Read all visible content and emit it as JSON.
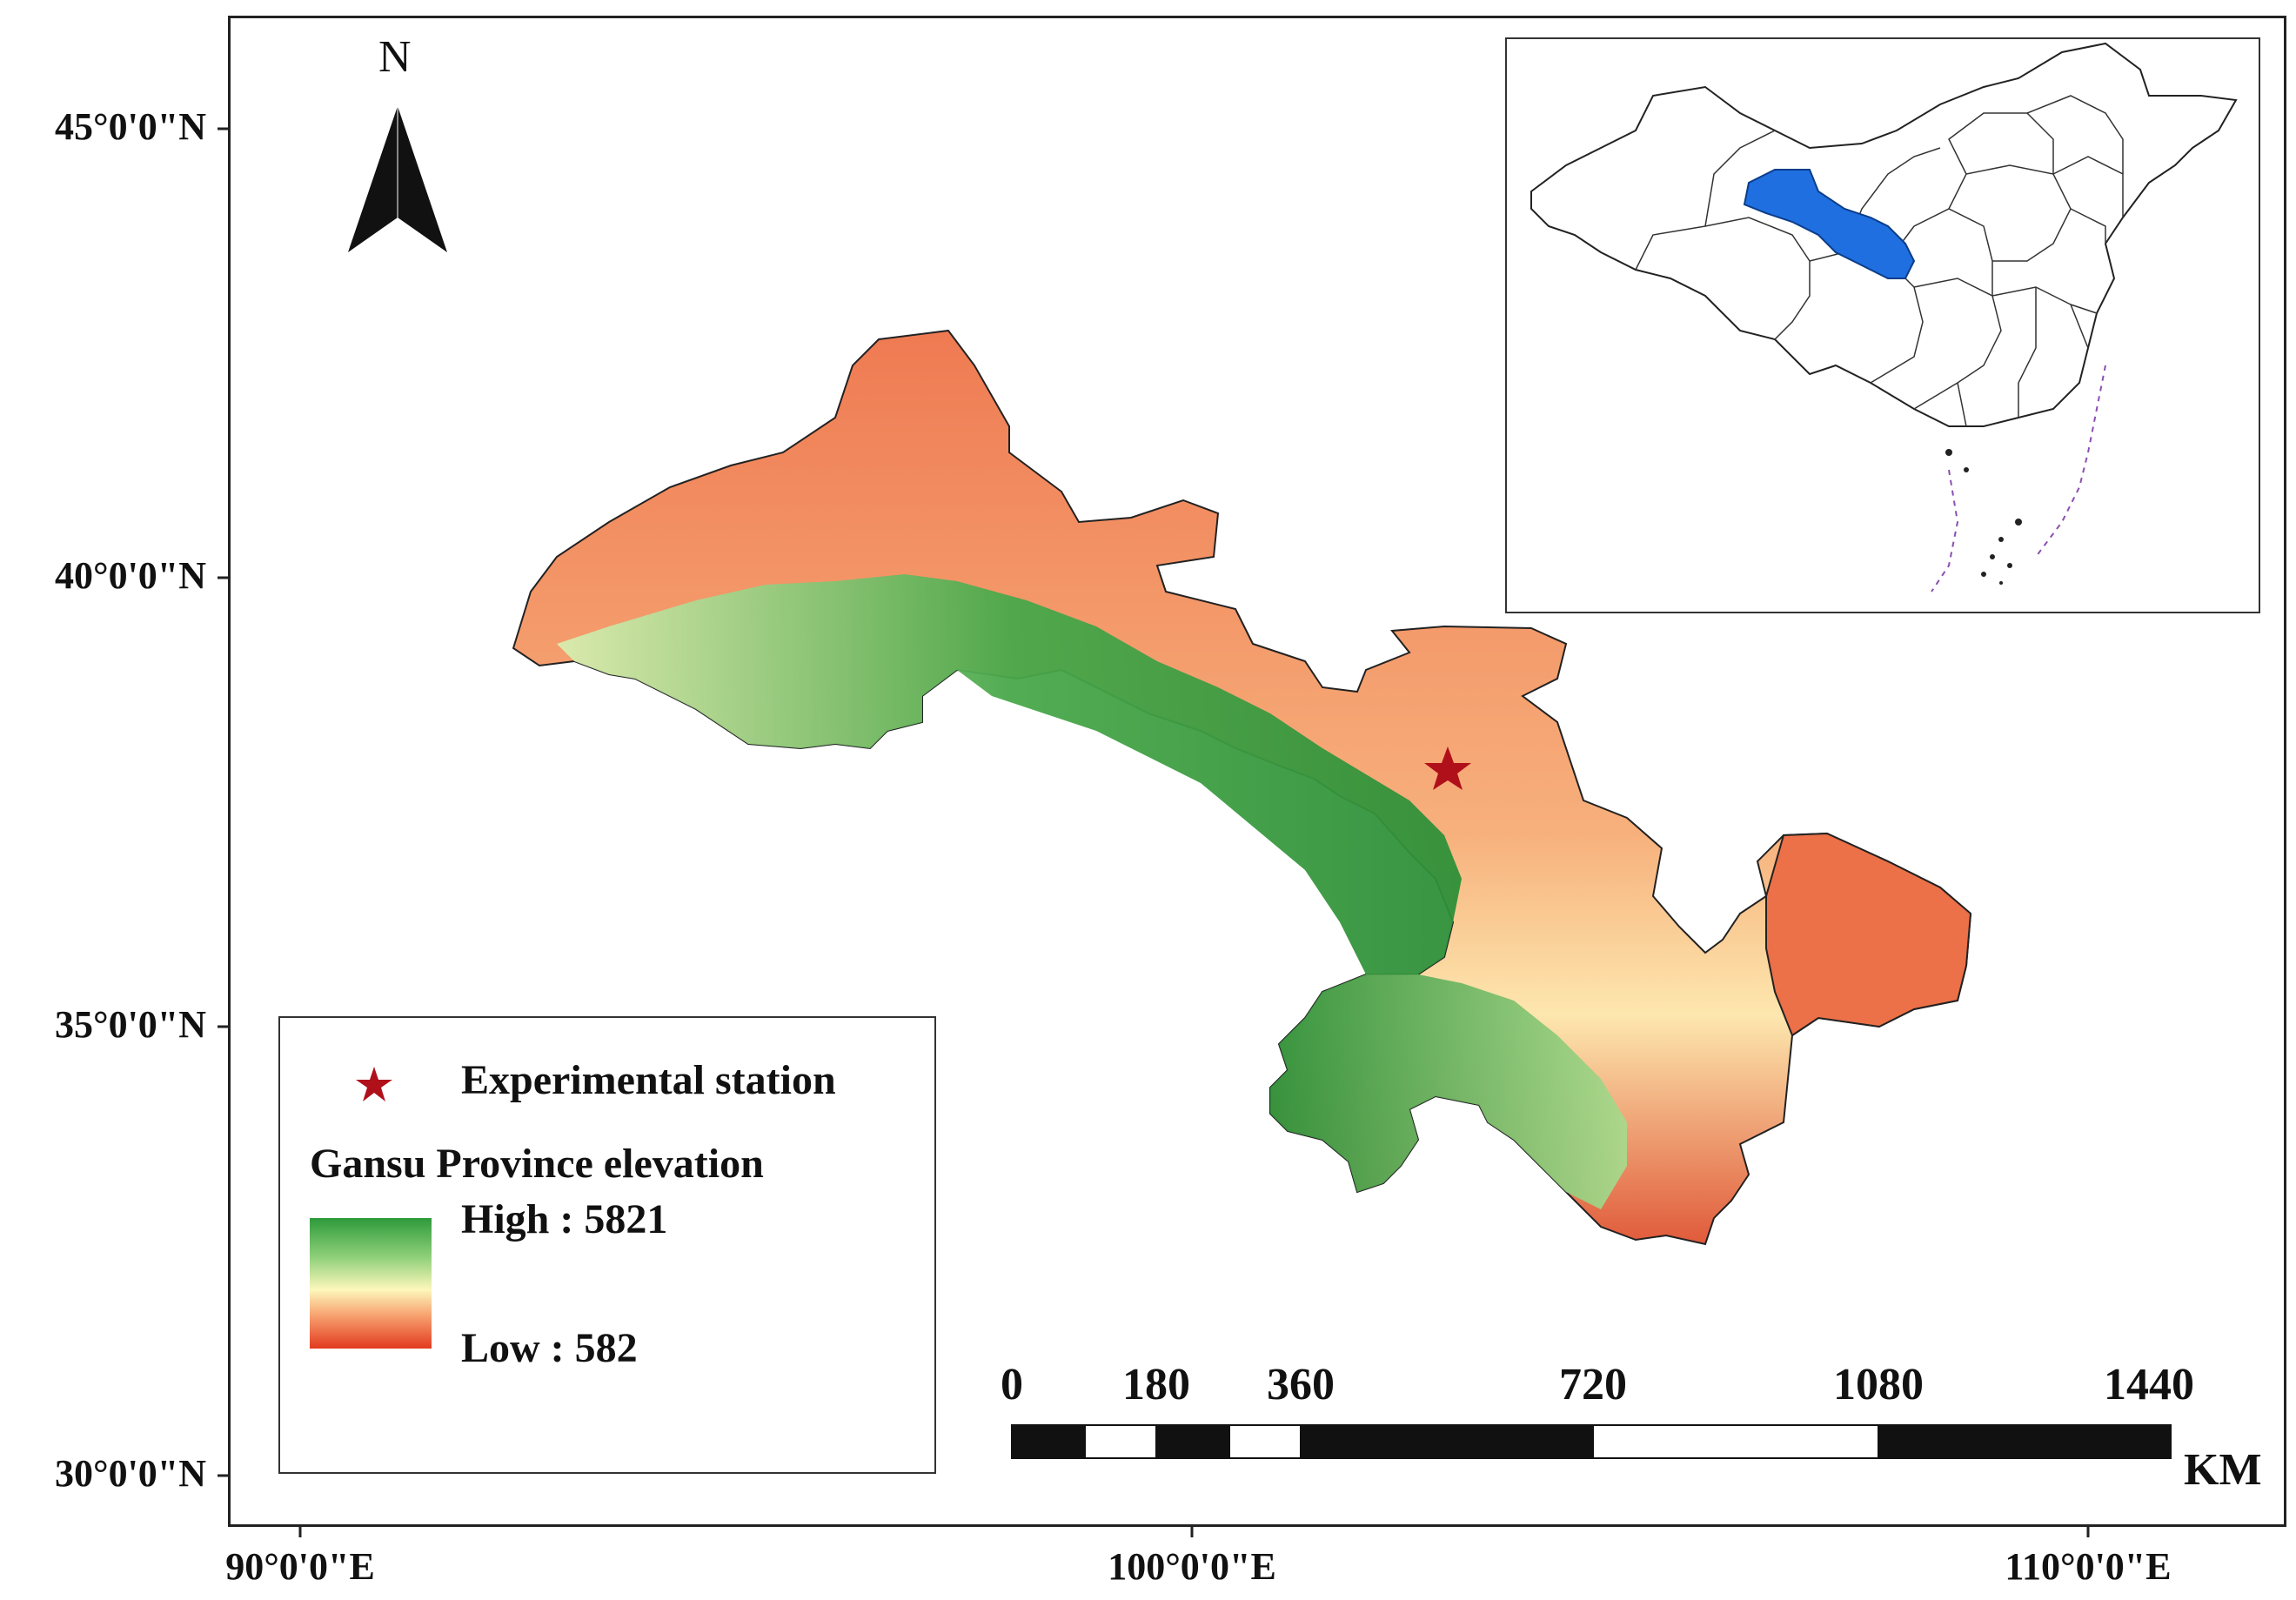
{
  "north_arrow": {
    "label": "N"
  },
  "latitude_labels": [
    "45°0'0\"N",
    "40°0'0\"N",
    "35°0'0\"N",
    "30°0'0\"N"
  ],
  "longitude_labels": [
    "90°0'0\"E",
    "100°0'0\"E",
    "110°0'0\"E"
  ],
  "legend": {
    "station_label": "Experimental station",
    "elevation_title": "Gansu Province elevation",
    "high_label": "High : 5821",
    "low_label": "Low : 582"
  },
  "scale_bar": {
    "ticks": [
      "0",
      "180",
      "360",
      "720",
      "1080",
      "1440"
    ],
    "unit": "KM"
  },
  "colors": {
    "high_elevation": "#2e9a3b",
    "mid_elevation": "#fdf7bb",
    "low_elevation": "#e23a1f",
    "station_marker": "#b0101a",
    "inset_highlight": "#1f6fe0"
  },
  "inset_map": {
    "highlighted_region": "Gansu"
  }
}
